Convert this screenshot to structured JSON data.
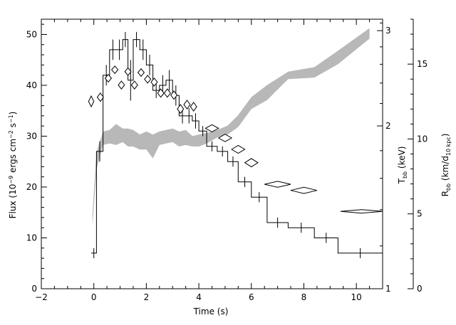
{
  "chart_data": {
    "type": "line",
    "title": "",
    "xlabel": "Time (s)",
    "xlim": [
      -2,
      11
    ],
    "x_ticks": [
      "−2",
      "0",
      "2",
      "4",
      "6",
      "8",
      "10"
    ],
    "x_tick_values": [
      -2,
      0,
      2,
      4,
      6,
      8,
      10
    ],
    "y_left": {
      "label_parts": [
        "Flux (10",
        "−9",
        " ergs cm",
        "−2",
        " s",
        "−1",
        ")"
      ],
      "ylim": [
        0,
        53
      ],
      "ticks": [
        "0",
        "10",
        "20",
        "30",
        "40",
        "50"
      ],
      "tick_values": [
        0,
        10,
        20,
        30,
        40,
        50
      ]
    },
    "y_inner_right": {
      "label_main": "T",
      "label_sub": "bb",
      "label_rest": " (keV)",
      "scale": "log",
      "ylim": [
        1,
        3.15
      ],
      "ticks": [
        "1",
        "2",
        "3"
      ],
      "tick_values": [
        1,
        2,
        3
      ]
    },
    "y_outer_right": {
      "label_main": "R",
      "label_sub": "bb",
      "label_mid": " (km/d",
      "label_sub2": "10 kpc",
      "label_end": ")",
      "ylim": [
        0,
        18
      ],
      "ticks": [
        "0",
        "5",
        "10",
        "15"
      ],
      "tick_values": [
        0,
        5,
        10,
        15
      ]
    },
    "series": [
      {
        "style": "histogram",
        "edges": [
          -0.1,
          0.1,
          0.35,
          0.6,
          0.85,
          1.1,
          1.3,
          1.5,
          1.75,
          2.0,
          2.25,
          2.5,
          2.75,
          3.0,
          3.25,
          3.5,
          3.75,
          4.0,
          4.3,
          4.7,
          5.1,
          5.5,
          6.0,
          6.6,
          7.4,
          8.4,
          9.3,
          11.0
        ],
        "values": [
          7,
          27,
          42,
          47,
          47,
          49,
          41,
          49,
          47,
          44,
          39,
          40,
          41,
          38,
          34,
          34,
          33,
          31,
          28,
          27,
          25,
          21,
          18,
          13,
          12,
          10,
          7
        ],
        "errors": [
          1,
          2,
          2,
          2,
          2,
          1.5,
          4,
          1.5,
          2,
          2,
          1.5,
          2,
          2,
          2,
          1.5,
          1.5,
          1.5,
          1,
          1,
          1,
          1,
          1,
          1,
          1,
          1,
          1,
          1
        ]
      },
      {
        "style": "diamonds",
        "axis": "y_inner_right",
        "x": [
          -0.1,
          0.25,
          0.55,
          0.8,
          1.05,
          1.3,
          1.55,
          1.8,
          2.05,
          2.3,
          2.55,
          2.8,
          3.05,
          3.3,
          3.55,
          3.8,
          4.5,
          5.0,
          5.5,
          6.0,
          7.0,
          8.0,
          10.2
        ],
        "x_half_width": [
          0.1,
          0.12,
          0.12,
          0.12,
          0.12,
          0.12,
          0.12,
          0.12,
          0.12,
          0.12,
          0.12,
          0.12,
          0.12,
          0.12,
          0.12,
          0.12,
          0.25,
          0.25,
          0.25,
          0.25,
          0.5,
          0.5,
          0.8
        ],
        "y": [
          2.22,
          2.26,
          2.45,
          2.54,
          2.38,
          2.52,
          2.38,
          2.51,
          2.44,
          2.41,
          2.3,
          2.3,
          2.28,
          2.15,
          2.19,
          2.17,
          1.98,
          1.9,
          1.81,
          1.71,
          1.56,
          1.52,
          1.39
        ],
        "y_err": [
          0.05,
          0.04,
          0.04,
          0.04,
          0.04,
          0.04,
          0.04,
          0.04,
          0.04,
          0.04,
          0.04,
          0.04,
          0.04,
          0.04,
          0.04,
          0.04,
          0.03,
          0.03,
          0.03,
          0.03,
          0.02,
          0.02,
          0.01
        ]
      },
      {
        "style": "band",
        "axis": "y_outer_right",
        "color": "#b8b8b8",
        "x": [
          -0.05,
          0.1,
          0.35,
          0.6,
          0.85,
          1.1,
          1.3,
          1.5,
          1.75,
          2.0,
          2.25,
          2.5,
          2.75,
          3.0,
          3.25,
          3.5,
          3.75,
          4.0,
          4.3,
          4.7,
          5.1,
          5.5,
          6.0,
          6.6,
          7.4,
          8.4,
          9.3,
          10.5
        ],
        "low": [
          4.2,
          8.0,
          9.6,
          9.7,
          9.6,
          9.8,
          9.5,
          9.5,
          9.3,
          9.3,
          8.7,
          9.6,
          9.7,
          9.8,
          9.5,
          9.6,
          9.5,
          9.5,
          9.7,
          10.1,
          10.3,
          10.8,
          12.0,
          12.6,
          14.0,
          14.1,
          15.0,
          16.7
        ],
        "high": [
          5.0,
          9.1,
          10.5,
          10.6,
          11.0,
          10.7,
          10.7,
          10.6,
          10.3,
          10.5,
          10.3,
          10.5,
          10.6,
          10.7,
          10.5,
          10.6,
          10.2,
          10.3,
          10.4,
          10.6,
          10.9,
          11.6,
          12.8,
          13.6,
          14.5,
          14.8,
          15.9,
          17.4
        ]
      }
    ],
    "grid": false,
    "legend": "none"
  }
}
